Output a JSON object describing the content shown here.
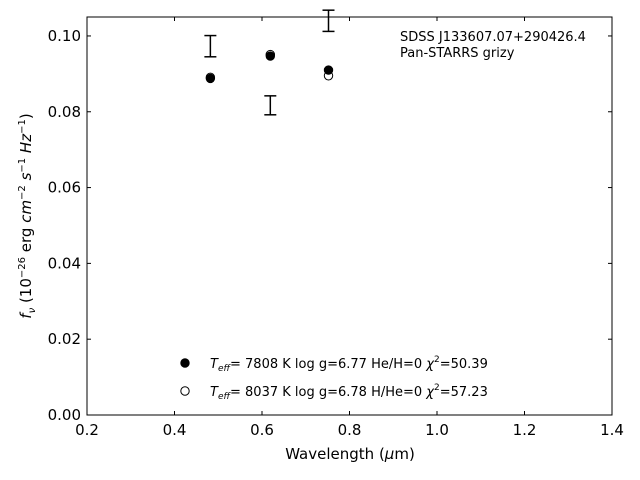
{
  "chart_data": {
    "type": "scatter",
    "xlabel": "Wavelength (μm)",
    "ylabel": "f_ν (10^−26 erg cm^−2 s^−1 Hz^−1)",
    "xlim": [
      0.2,
      1.4
    ],
    "ylim": [
      0.0,
      0.105
    ],
    "x_ticks": [
      0.2,
      0.4,
      0.6,
      0.8,
      1.0,
      1.2,
      1.4
    ],
    "y_ticks": [
      0.0,
      0.02,
      0.04,
      0.06,
      0.08,
      0.1
    ],
    "x_tick_labels": [
      "0.2",
      "0.4",
      "0.6",
      "0.8",
      "1.0",
      "1.2",
      "1.4"
    ],
    "y_tick_labels": [
      "0.00",
      "0.02",
      "0.04",
      "0.06",
      "0.08",
      "0.10"
    ],
    "grid": false,
    "annotation_lines": [
      "SDSS J133607.07+290426.4",
      "Pan-STARRS grizy"
    ],
    "observed": {
      "x": [
        0.482,
        0.619,
        0.752
      ],
      "y": [
        0.0973,
        0.0817,
        0.104
      ],
      "yerr": [
        0.0028,
        0.0025,
        0.0028
      ]
    },
    "series": [
      {
        "label_prefix": "T",
        "label_sub": "eff",
        "label_main": "=  7808 K  log g=6.77  He/H=0",
        "label_chi": "χ",
        "label_chi_val": "=50.39",
        "marker": "filled",
        "x": [
          0.482,
          0.619,
          0.752
        ],
        "y": [
          0.0888,
          0.0947,
          0.091
        ]
      },
      {
        "label_prefix": "T",
        "label_sub": "eff",
        "label_main": "=  8037 K  log g=6.78  H/He=0",
        "label_chi": "χ",
        "label_chi_val": "=57.23",
        "marker": "open",
        "x": [
          0.482,
          0.619,
          0.752
        ],
        "y": [
          0.0891,
          0.0951,
          0.0895
        ]
      }
    ],
    "legend_placement": "lower-center"
  }
}
